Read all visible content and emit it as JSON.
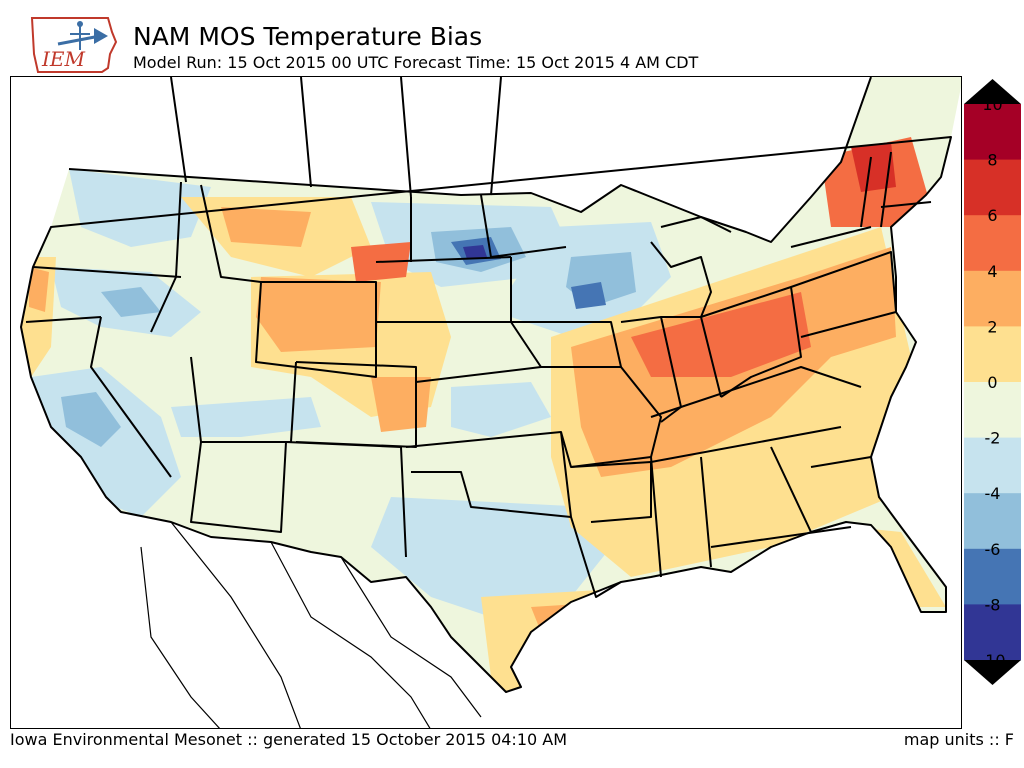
{
  "header": {
    "logo_text": "IEM",
    "title": "NAM MOS Temperature Bias",
    "subtitle": "Model Run: 15 Oct 2015 00 UTC Forecast Time: 15 Oct 2015 4 AM CDT"
  },
  "footer": {
    "credit": "Iowa Environmental Mesonet :: generated 15 October 2015 04:10 AM",
    "units": "map units :: F"
  },
  "colorbar": {
    "labels": [
      "10",
      "8",
      "6",
      "4",
      "2",
      "0",
      "-2",
      "-4",
      "-6",
      "-8",
      "-10"
    ],
    "colors": [
      "#a50026",
      "#d73027",
      "#f46d43",
      "#fdae61",
      "#fee090",
      "#eef6dd",
      "#c6e3ee",
      "#91bfdb",
      "#4575b4",
      "#313695"
    ],
    "over_color": "#000000",
    "under_color": "#000000"
  },
  "colors": {
    "neutral": "#eef6dd",
    "cool": "#c6e3ee",
    "cooler": "#91bfdb",
    "coldest": "#4575b4",
    "coldest_deep": "#313695",
    "warm": "#fee090",
    "warmer": "#fdae61",
    "warmest": "#f46d43",
    "hot": "#d73027",
    "border": "#000000",
    "logo_red": "#c0392b",
    "logo_blue": "#3b6ea5"
  }
}
